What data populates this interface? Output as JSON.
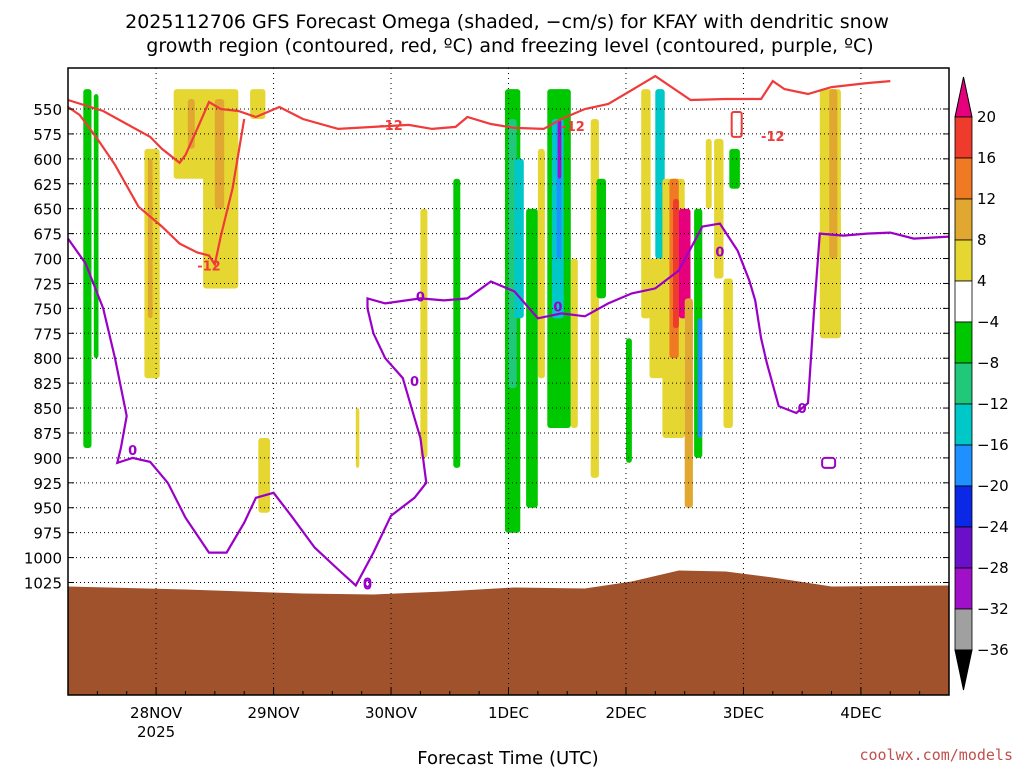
{
  "chart_data": {
    "type": "heatmap",
    "title_line1": "2025112706 GFS Forecast Omega (shaded, −cm/s) for KFAY with dendritic snow",
    "title_line2": "growth region (contoured, red, ºC) and freezing level (contoured, purple, ºC)",
    "xlabel": "Forecast Time (UTC)",
    "credit": "coolwx.com/models",
    "x_ticks": [
      {
        "t": 0.75,
        "label": "28NOV",
        "sub": "2025"
      },
      {
        "t": 1.75,
        "label": "29NOV",
        "sub": ""
      },
      {
        "t": 2.75,
        "label": "30NOV",
        "sub": ""
      },
      {
        "t": 3.75,
        "label": "1DEC",
        "sub": ""
      },
      {
        "t": 4.75,
        "label": "2DEC",
        "sub": ""
      },
      {
        "t": 5.75,
        "label": "3DEC",
        "sub": ""
      },
      {
        "t": 6.75,
        "label": "4DEC",
        "sub": ""
      }
    ],
    "xlim_days": [
      0,
      7.5
    ],
    "y_levels_hPa": [
      550,
      575,
      600,
      625,
      650,
      675,
      700,
      725,
      750,
      775,
      800,
      825,
      850,
      875,
      900,
      925,
      950,
      975,
      1000,
      1025
    ],
    "colorbar_ticks": [
      "20",
      "16",
      "12",
      "8",
      "4",
      "−4",
      "−8",
      "−12",
      "−16",
      "−20",
      "−24",
      "−28",
      "−32",
      "−36"
    ],
    "colorbar_colors": [
      "#ef3b2c",
      "#f07a24",
      "#e0a830",
      "#e6d632",
      "#ffffff",
      "#00c800",
      "#20c87a",
      "#00c8c8",
      "#1e90ff",
      "#0a28e6",
      "#6a10c8",
      "#a010c8",
      "#a0a0a0"
    ],
    "colorbar_top_color": "#e6007e",
    "colorbar_bottom_color": "#000000",
    "contour_labels": {
      "dgz_values": [
        "-12",
        "-12",
        "-12",
        "-12"
      ],
      "freezing_values": [
        "0",
        "0",
        "0",
        "0",
        "0",
        "0",
        "0",
        "0"
      ]
    },
    "series_dgz_top_hPa": {
      "name": "-12C isotherm (DGZ)",
      "points": [
        [
          0.0,
          541
        ],
        [
          0.3,
          552
        ],
        [
          0.5,
          565
        ],
        [
          0.7,
          578
        ],
        [
          0.8,
          590
        ],
        [
          0.95,
          604
        ],
        [
          1.0,
          596
        ],
        [
          1.1,
          570
        ],
        [
          1.2,
          543
        ],
        [
          1.3,
          550
        ],
        [
          1.45,
          552
        ],
        [
          1.6,
          558
        ],
        [
          1.8,
          548
        ],
        [
          2.0,
          560
        ],
        [
          2.3,
          570
        ],
        [
          2.6,
          568
        ],
        [
          2.9,
          566
        ],
        [
          3.1,
          570
        ],
        [
          3.3,
          568
        ],
        [
          3.4,
          558
        ],
        [
          3.6,
          565
        ],
        [
          3.8,
          569
        ],
        [
          4.05,
          570
        ],
        [
          4.2,
          560
        ],
        [
          4.4,
          550
        ],
        [
          4.6,
          545
        ],
        [
          5.0,
          517
        ],
        [
          5.3,
          541
        ],
        [
          5.6,
          540
        ],
        [
          5.9,
          540
        ],
        [
          6.0,
          522
        ],
        [
          6.1,
          530
        ],
        [
          6.3,
          535
        ],
        [
          6.5,
          528
        ],
        [
          6.8,
          524
        ],
        [
          7.0,
          522
        ]
      ]
    },
    "series_dgz_bottom_hPa": {
      "name": "-12C isotherm lower branch",
      "points": [
        [
          0.0,
          548
        ],
        [
          0.1,
          556
        ],
        [
          0.25,
          580
        ],
        [
          0.4,
          606
        ],
        [
          0.6,
          648
        ],
        [
          0.8,
          668
        ],
        [
          0.95,
          685
        ],
        [
          1.1,
          694
        ],
        [
          1.2,
          697
        ],
        [
          1.25,
          706
        ],
        [
          1.3,
          678
        ],
        [
          1.4,
          630
        ],
        [
          1.5,
          560
        ]
      ]
    },
    "series_freezing_hPa": {
      "name": "0C freezing level",
      "points": [
        [
          0.0,
          680
        ],
        [
          0.15,
          705
        ],
        [
          0.3,
          750
        ],
        [
          0.4,
          800
        ],
        [
          0.5,
          858
        ],
        [
          0.45,
          890
        ],
        [
          0.42,
          905
        ],
        [
          0.55,
          900
        ],
        [
          0.7,
          904
        ],
        [
          0.85,
          925
        ],
        [
          1.0,
          960
        ],
        [
          1.2,
          995
        ],
        [
          1.35,
          995
        ],
        [
          1.5,
          965
        ],
        [
          1.6,
          940
        ],
        [
          1.75,
          935
        ],
        [
          1.9,
          958
        ],
        [
          2.1,
          990
        ],
        [
          2.3,
          1012
        ],
        [
          2.45,
          1028
        ],
        [
          2.6,
          995
        ],
        [
          2.75,
          958
        ],
        [
          2.95,
          940
        ],
        [
          3.05,
          925
        ],
        [
          3.0,
          880
        ],
        [
          2.95,
          860
        ],
        [
          2.85,
          820
        ],
        [
          2.7,
          800
        ],
        [
          2.6,
          775
        ],
        [
          2.55,
          750
        ],
        [
          2.55,
          740
        ],
        [
          2.7,
          745
        ],
        [
          3.0,
          740
        ],
        [
          3.2,
          742
        ],
        [
          3.4,
          740
        ],
        [
          3.6,
          723
        ],
        [
          3.8,
          733
        ],
        [
          4.0,
          760
        ],
        [
          4.2,
          755
        ],
        [
          4.4,
          758
        ],
        [
          4.6,
          745
        ],
        [
          4.8,
          735
        ],
        [
          5.0,
          730
        ],
        [
          5.2,
          712
        ],
        [
          5.3,
          690
        ],
        [
          5.4,
          668
        ],
        [
          5.55,
          665
        ],
        [
          5.7,
          692
        ],
        [
          5.8,
          722
        ],
        [
          5.85,
          742
        ],
        [
          5.9,
          780
        ],
        [
          5.95,
          805
        ],
        [
          6.05,
          848
        ],
        [
          6.2,
          855
        ],
        [
          6.3,
          845
        ],
        [
          6.35,
          755
        ],
        [
          6.4,
          675
        ],
        [
          6.6,
          677
        ],
        [
          6.8,
          675
        ],
        [
          7.0,
          674
        ],
        [
          7.2,
          680
        ],
        [
          7.5,
          678
        ]
      ]
    }
  }
}
